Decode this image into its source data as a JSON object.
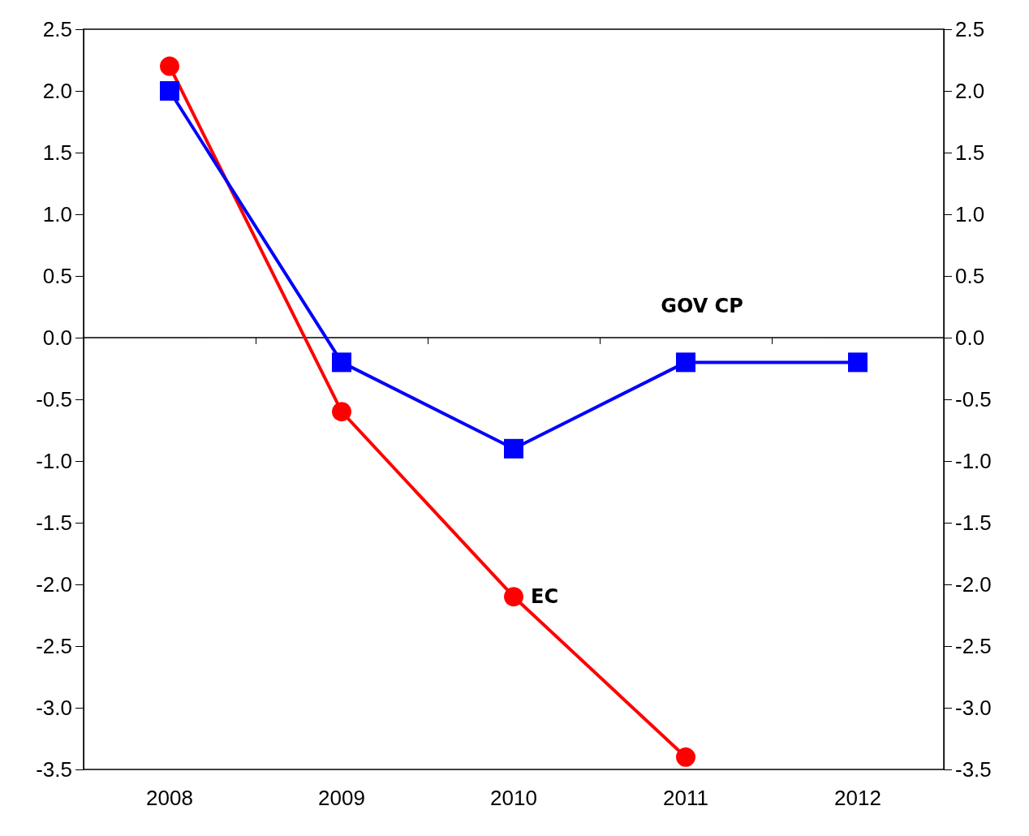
{
  "chart_data": {
    "type": "line",
    "categories": [
      "2008",
      "2009",
      "2010",
      "2011",
      "2012"
    ],
    "series": [
      {
        "name": "EC",
        "color": "#ff0000",
        "marker": "circle",
        "values": [
          2.2,
          -0.6,
          -2.1,
          -3.4,
          null
        ]
      },
      {
        "name": "GOV CP",
        "color": "#0000ff",
        "marker": "square",
        "values": [
          2.0,
          -0.2,
          -0.9,
          -0.2,
          -0.2
        ]
      }
    ],
    "ylim": [
      -3.5,
      2.5
    ],
    "yticks": [
      {
        "value": -3.5,
        "label": "-3.5"
      },
      {
        "value": -3,
        "label": "-3.0"
      },
      {
        "value": -2.5,
        "label": "-2.5"
      },
      {
        "value": -2,
        "label": "-2.0"
      },
      {
        "value": -1.5,
        "label": "-1.5"
      },
      {
        "value": -1,
        "label": "-1.0"
      },
      {
        "value": -0.5,
        "label": "-0.5"
      },
      {
        "value": 0,
        "label": "0.0"
      },
      {
        "value": 0.5,
        "label": "0.5"
      },
      {
        "value": 1,
        "label": "1.0"
      },
      {
        "value": 1.5,
        "label": "1.5"
      },
      {
        "value": 2,
        "label": "2.0"
      },
      {
        "value": 2.5,
        "label": "2.5"
      }
    ],
    "y2lim": [
      -3.5,
      2.5
    ],
    "y2ticks": [
      {
        "value": -3.5,
        "label": "-3.5"
      },
      {
        "value": -3,
        "label": "-3.0"
      },
      {
        "value": -2.5,
        "label": "-2.5"
      },
      {
        "value": -2,
        "label": "-2.0"
      },
      {
        "value": -1.5,
        "label": "-1.5"
      },
      {
        "value": -1,
        "label": "-1.0"
      },
      {
        "value": -0.5,
        "label": "-0.5"
      },
      {
        "value": 0,
        "label": "0.0"
      },
      {
        "value": 0.5,
        "label": "0.5"
      },
      {
        "value": 1,
        "label": "1.0"
      },
      {
        "value": 1.5,
        "label": "1.5"
      },
      {
        "value": 2,
        "label": "2.0"
      },
      {
        "value": 2.5,
        "label": "2.5"
      }
    ],
    "legend": false,
    "line_style": "solid"
  }
}
